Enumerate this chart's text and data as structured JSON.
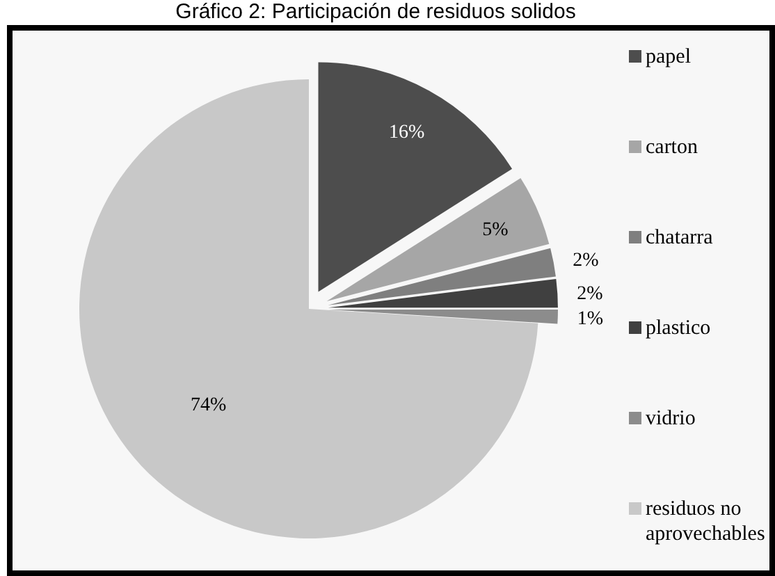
{
  "chart_data": {
    "type": "pie",
    "title": "Gráfico 2: Participación de residuos solidos",
    "categories": [
      "papel",
      "carton",
      "chatarra",
      "plastico",
      "vidrio",
      "residuos no aprovechables"
    ],
    "values": [
      16,
      5,
      2,
      2,
      1,
      74
    ],
    "colors": [
      "#4d4d4d",
      "#a6a6a6",
      "#7f7f7f",
      "#404040",
      "#8c8c8c",
      "#c8c8c8"
    ],
    "value_labels": [
      "16%",
      "5%",
      "2%",
      "2%",
      "1%",
      "74%"
    ],
    "legend": "right"
  }
}
